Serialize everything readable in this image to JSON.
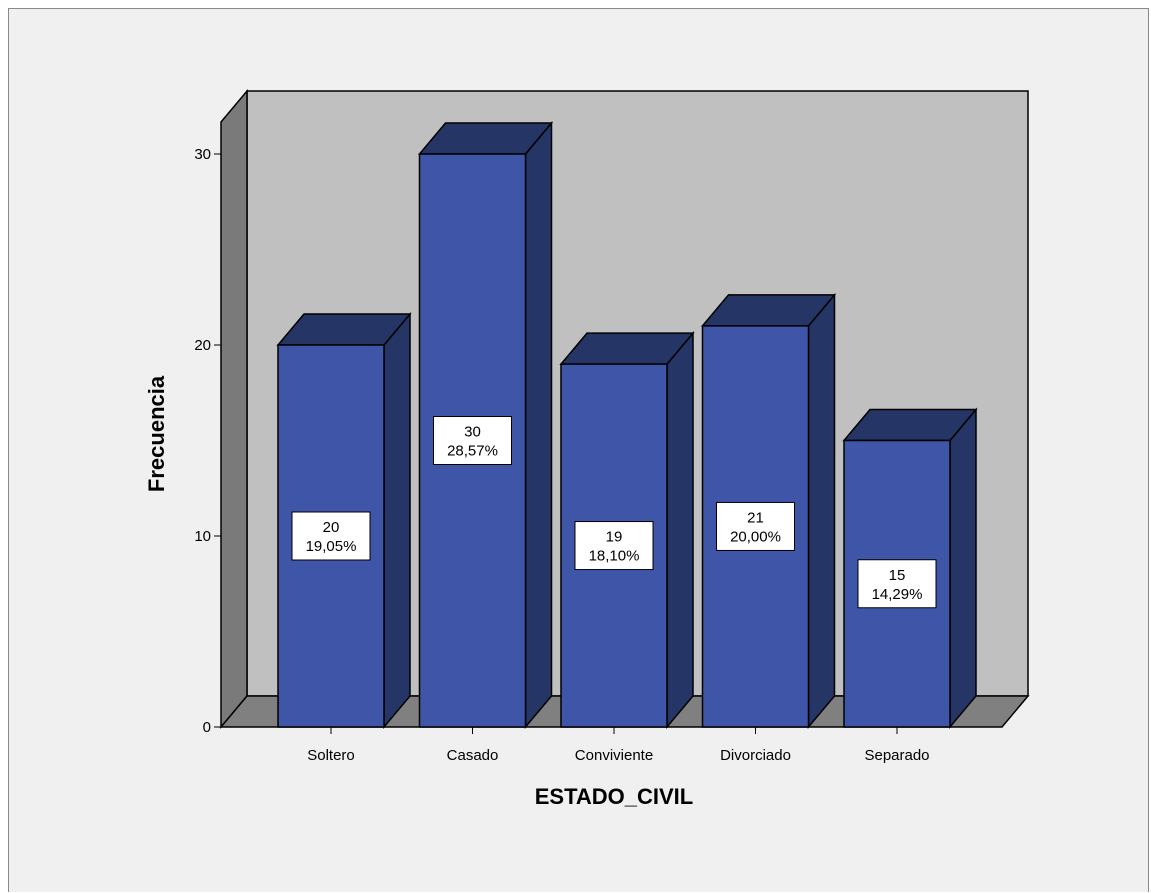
{
  "chart_data": {
    "type": "bar",
    "style": "3d",
    "categories": [
      "Soltero",
      "Casado",
      "Conviviente",
      "Divorciado",
      "Separado"
    ],
    "values": [
      20,
      30,
      19,
      21,
      15
    ],
    "percent_labels": [
      "19,05%",
      "28,57%",
      "18,10%",
      "20,00%",
      "14,29%"
    ],
    "xlabel": "ESTADO_CIVIL",
    "ylabel": "Frecuencia",
    "ylim": [
      0,
      30
    ],
    "yticks": [
      0,
      10,
      20,
      30
    ],
    "grid": false,
    "legend": "none",
    "colors": {
      "bar_front": "#3e55a8",
      "bar_side": "#243566",
      "bar_top": "#243566",
      "wall_back": "#c0c0c0",
      "wall_side": "#7a7a7a",
      "floor": "#808080",
      "frame_bg": "#f0f0f0",
      "label_box": "#ffffff"
    }
  }
}
